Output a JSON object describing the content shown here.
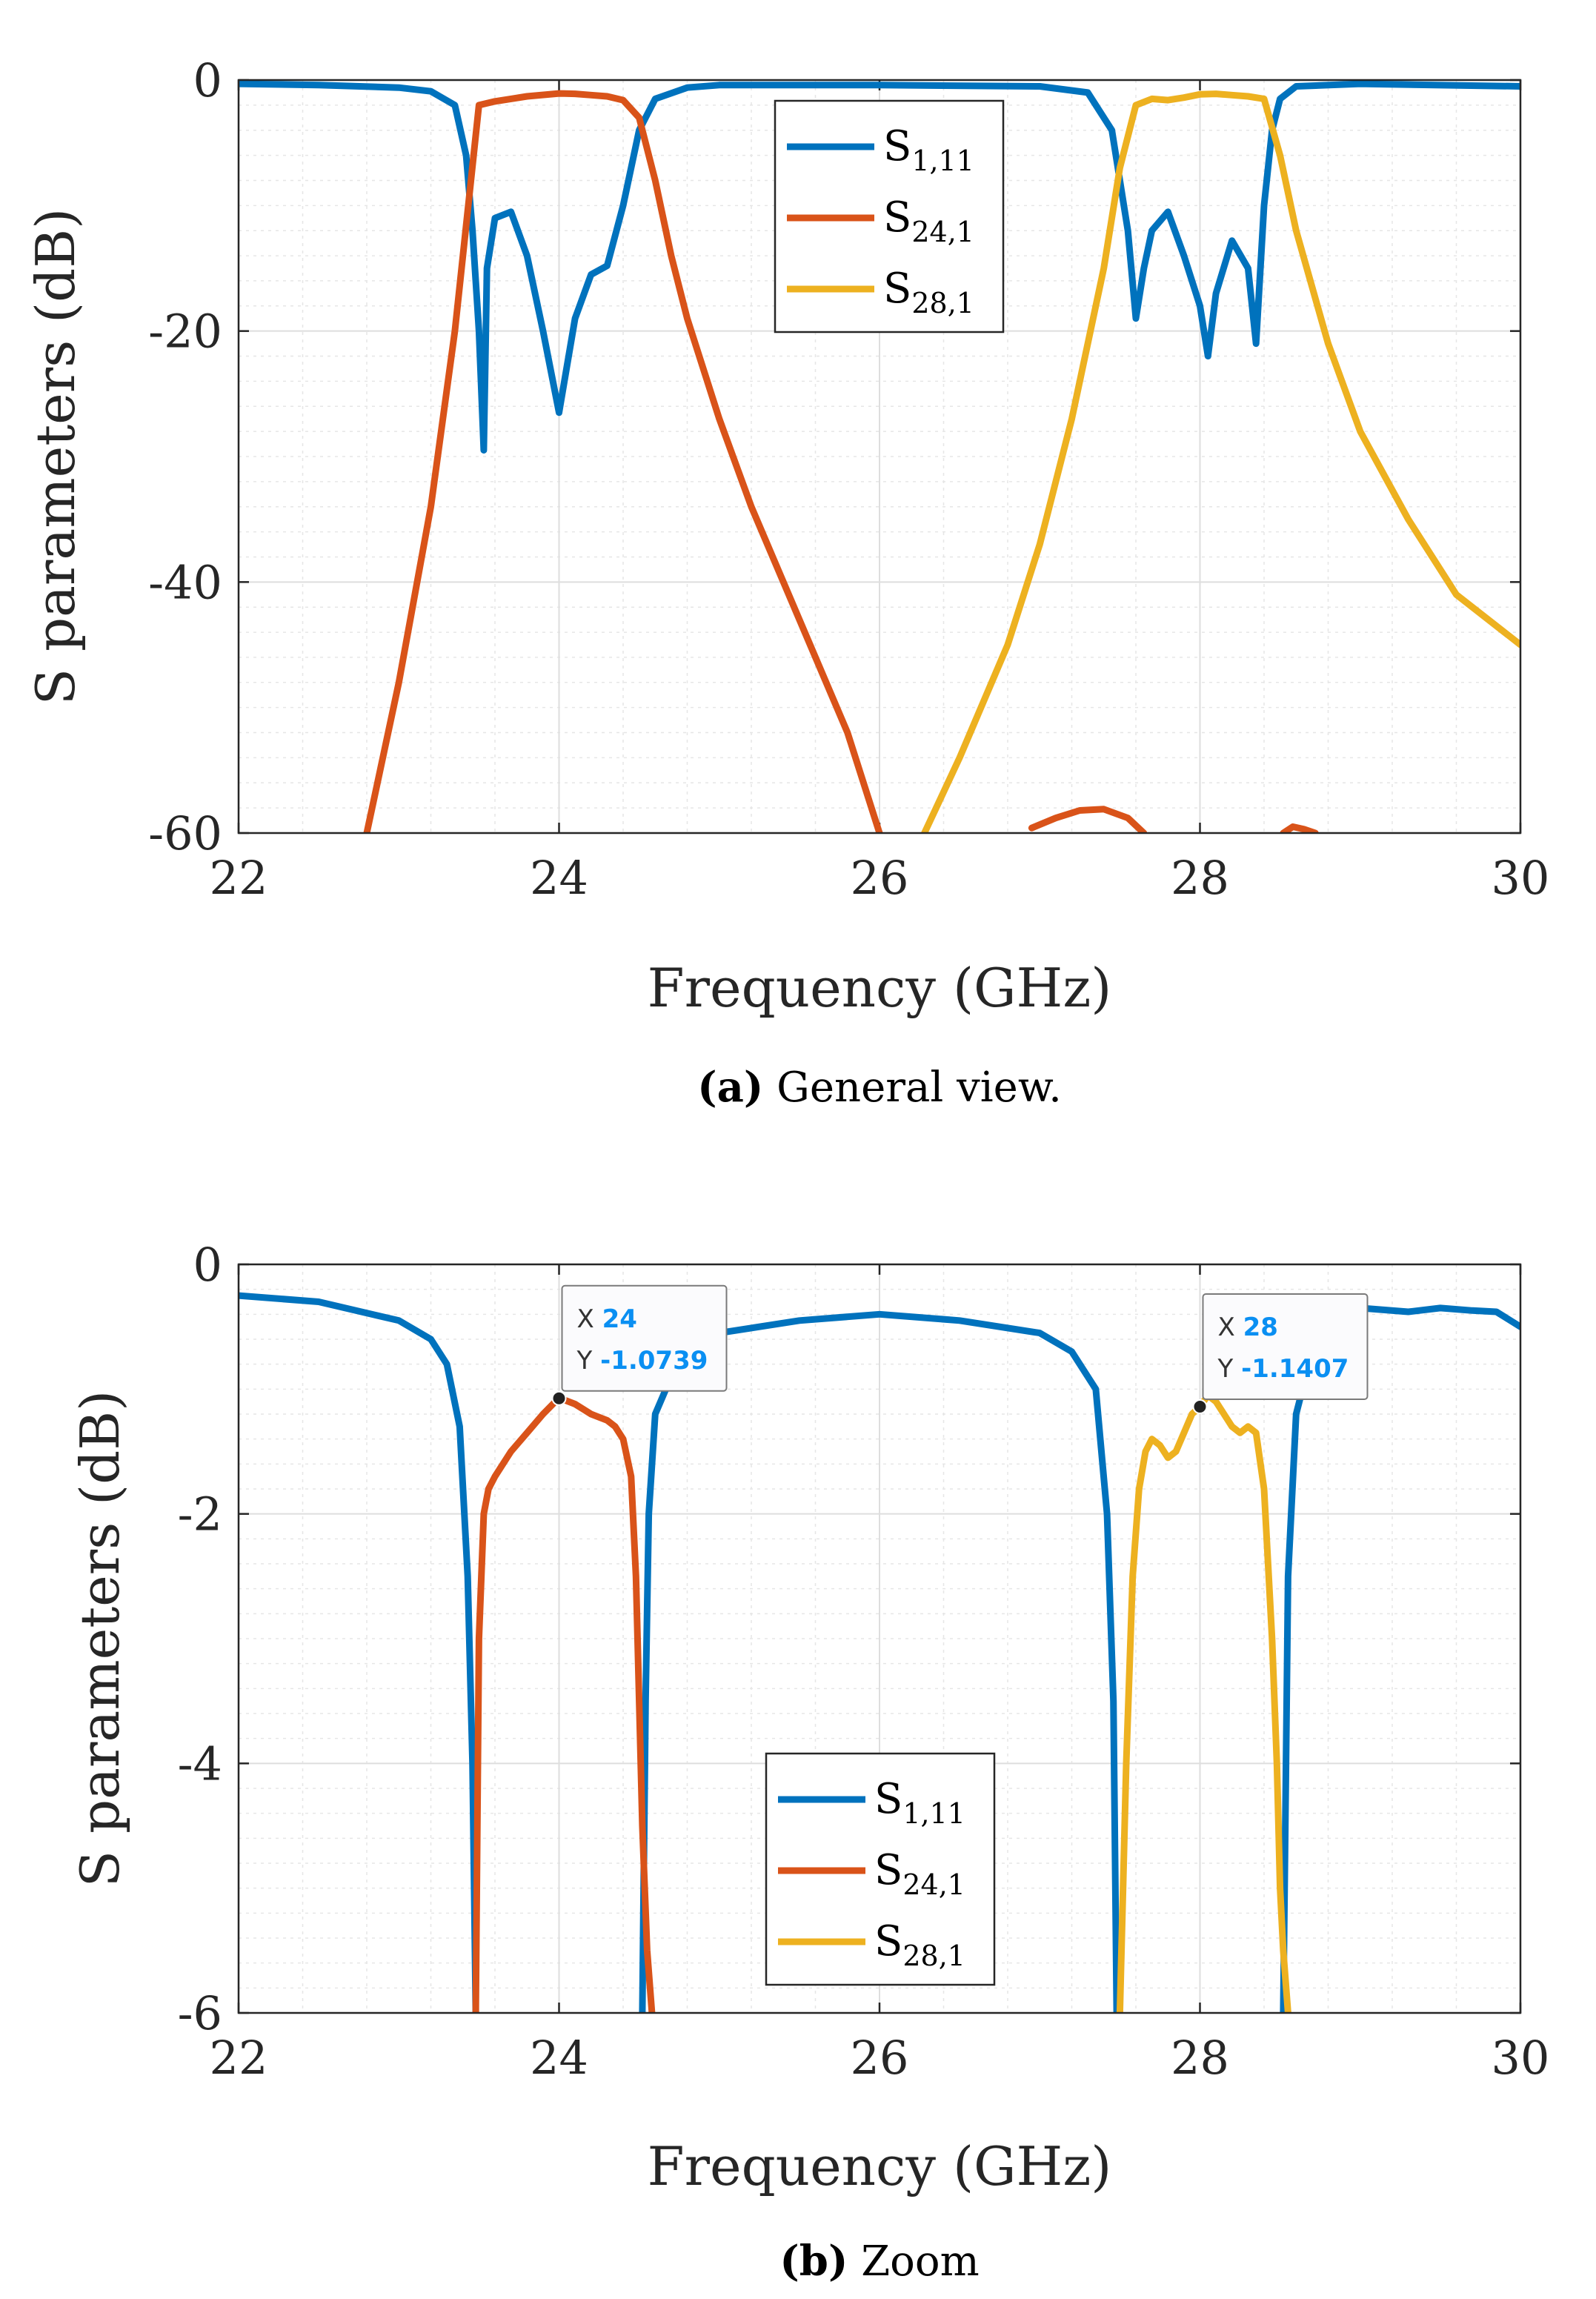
{
  "chart_data": [
    {
      "type": "line",
      "caption_tag": "(a)",
      "caption_text": " General view.",
      "xlabel": "Frequency (GHz)",
      "ylabel": "S parameters (dB)",
      "xlim": [
        22,
        30
      ],
      "ylim": [
        -60,
        0
      ],
      "xticks": [
        "22",
        "24",
        "26",
        "28",
        "30"
      ],
      "yticks": [
        "0",
        "-20",
        "-40",
        "-60"
      ],
      "grid": true,
      "minor_grid": true,
      "legend_position": "top-center",
      "series": [
        {
          "base": "S",
          "sub": "1,11",
          "color": "#0072BD",
          "x": [
            22,
            22.5,
            23,
            23.2,
            23.35,
            23.42,
            23.46,
            23.5,
            23.53,
            23.55,
            23.6,
            23.7,
            23.8,
            23.9,
            24,
            24.1,
            24.2,
            24.3,
            24.4,
            24.5,
            24.6,
            24.8,
            25,
            26,
            27,
            27.3,
            27.45,
            27.55,
            27.6,
            27.65,
            27.7,
            27.8,
            27.9,
            28,
            28.05,
            28.1,
            28.2,
            28.3,
            28.35,
            28.4,
            28.45,
            28.5,
            28.6,
            29,
            30
          ],
          "y": [
            -0.3,
            -0.4,
            -0.6,
            -0.9,
            -2,
            -6,
            -12,
            -20,
            -29.5,
            -15,
            -11,
            -10.5,
            -14,
            -20,
            -26.5,
            -19,
            -15.5,
            -14.8,
            -10,
            -4,
            -1.5,
            -0.6,
            -0.4,
            -0.4,
            -0.5,
            -1,
            -4,
            -12,
            -19,
            -15,
            -12,
            -10.5,
            -14,
            -18,
            -22,
            -17,
            -12.8,
            -15,
            -21,
            -10,
            -4,
            -1.5,
            -0.5,
            -0.3,
            -0.5
          ]
        },
        {
          "base": "S",
          "sub": "24,1",
          "color": "#D95319",
          "x": [
            22.8,
            23,
            23.2,
            23.35,
            23.45,
            23.5,
            23.6,
            23.7,
            23.8,
            24,
            24.1,
            24.2,
            24.3,
            24.4,
            24.5,
            24.6,
            24.7,
            24.8,
            25,
            25.2,
            25.5,
            25.8,
            26
          ],
          "y": [
            -60,
            -48,
            -34,
            -20,
            -8,
            -2,
            -1.7,
            -1.5,
            -1.3,
            -1.07,
            -1.1,
            -1.2,
            -1.3,
            -1.6,
            -3,
            -8,
            -14,
            -19,
            -27,
            -34,
            -43,
            -52,
            -60
          ],
          "fragments": [
            {
              "x": [
                26.95,
                27.1,
                27.25,
                27.4,
                27.55,
                27.65
              ],
              "y": [
                -59.6,
                -58.8,
                -58.2,
                -58.1,
                -58.8,
                -60
              ]
            },
            {
              "x": [
                28.52,
                28.58,
                28.65,
                28.72
              ],
              "y": [
                -60,
                -59.5,
                -59.7,
                -60
              ]
            }
          ]
        },
        {
          "base": "S",
          "sub": "28,1",
          "color": "#EDB120",
          "x": [
            26.28,
            26.5,
            26.8,
            27,
            27.2,
            27.4,
            27.5,
            27.6,
            27.7,
            27.8,
            27.9,
            28,
            28.1,
            28.2,
            28.3,
            28.4,
            28.5,
            28.6,
            28.8,
            29,
            29.3,
            29.6,
            30
          ],
          "y": [
            -60,
            -54,
            -45,
            -37,
            -27,
            -15,
            -7,
            -2,
            -1.5,
            -1.6,
            -1.4,
            -1.14,
            -1.1,
            -1.2,
            -1.3,
            -1.5,
            -6,
            -12,
            -21,
            -28,
            -35,
            -41,
            -45
          ]
        }
      ]
    },
    {
      "type": "line",
      "caption_tag": "(b)",
      "caption_text": " Zoom",
      "xlabel": "Frequency (GHz)",
      "ylabel": "S parameters (dB)",
      "xlim": [
        22,
        30
      ],
      "ylim": [
        -6,
        0
      ],
      "xticks": [
        "22",
        "24",
        "26",
        "28",
        "30"
      ],
      "yticks": [
        "0",
        "-2",
        "-4",
        "-6"
      ],
      "grid": true,
      "minor_grid": true,
      "legend_position": "bottom-center",
      "series": [
        {
          "base": "S",
          "sub": "1,11",
          "color": "#0072BD",
          "x": [
            22,
            22.5,
            23,
            23.2,
            23.3,
            23.38,
            23.43,
            23.46,
            23.48,
            null,
            24.52,
            24.54,
            24.56,
            24.6,
            24.7,
            24.8,
            25,
            25.5,
            26,
            26.5,
            27,
            27.2,
            27.35,
            27.42,
            27.46,
            27.48,
            null,
            28.52,
            28.55,
            28.6,
            28.7,
            28.8,
            29,
            29.3,
            29.5,
            29.7,
            29.85,
            30
          ],
          "y": [
            -0.25,
            -0.3,
            -0.45,
            -0.6,
            -0.8,
            -1.3,
            -2.5,
            -4,
            -6,
            null,
            -6,
            -3.5,
            -2,
            -1.2,
            -0.9,
            -0.7,
            -0.55,
            -0.45,
            -0.4,
            -0.45,
            -0.55,
            -0.7,
            -1,
            -2,
            -3.5,
            -6,
            null,
            -6,
            -2.5,
            -1.2,
            -0.7,
            -0.45,
            -0.35,
            -0.38,
            -0.35,
            -0.37,
            -0.38,
            -0.5
          ]
        },
        {
          "base": "S",
          "sub": "24,1",
          "color": "#D95319",
          "x": [
            23.48,
            23.5,
            23.53,
            23.56,
            23.6,
            23.7,
            23.8,
            23.9,
            24,
            24.1,
            24.2,
            24.3,
            24.35,
            24.4,
            24.45,
            24.48,
            24.5,
            24.52,
            24.55,
            24.58
          ],
          "y": [
            -6,
            -3,
            -2,
            -1.8,
            -1.7,
            -1.5,
            -1.35,
            -1.2,
            -1.07,
            -1.12,
            -1.2,
            -1.25,
            -1.3,
            -1.4,
            -1.7,
            -2.5,
            -3.5,
            -4.5,
            -5.5,
            -6
          ]
        },
        {
          "base": "S",
          "sub": "28,1",
          "color": "#EDB120",
          "x": [
            27.5,
            27.54,
            27.58,
            27.62,
            27.66,
            27.7,
            27.75,
            27.8,
            27.85,
            27.9,
            27.95,
            28,
            28.05,
            28.1,
            28.15,
            28.2,
            28.25,
            28.3,
            28.35,
            28.4,
            28.45,
            28.48,
            28.5,
            28.52,
            28.55
          ],
          "y": [
            -6,
            -4,
            -2.5,
            -1.8,
            -1.5,
            -1.4,
            -1.45,
            -1.55,
            -1.5,
            -1.35,
            -1.2,
            -1.14,
            -1.05,
            -1.1,
            -1.2,
            -1.3,
            -1.35,
            -1.3,
            -1.35,
            -1.8,
            -3,
            -4,
            -5,
            -5.5,
            -6
          ]
        }
      ],
      "annotations": [
        {
          "x_label": "X",
          "x_value": "24",
          "y_label": "Y",
          "y_value": "-1.0739",
          "x": 24,
          "y": -1.0739
        },
        {
          "x_label": "X",
          "x_value": "28",
          "y_label": "Y",
          "y_value": "-1.1407",
          "x": 28,
          "y": -1.1407
        }
      ]
    }
  ]
}
